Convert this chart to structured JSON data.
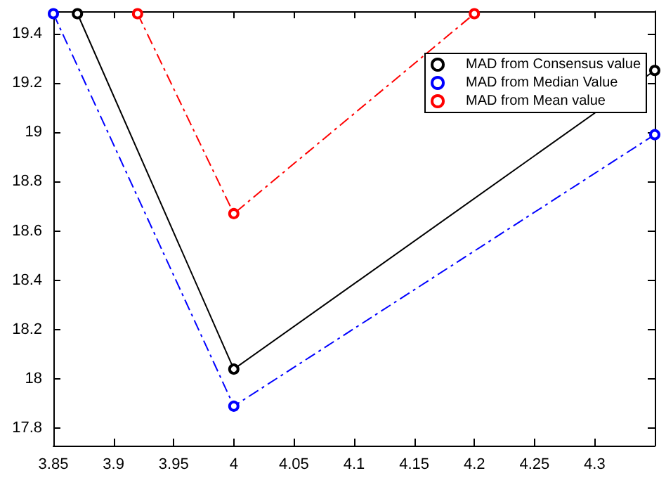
{
  "chart_data": {
    "type": "line",
    "marker": "circle",
    "legend": "top right",
    "grid": false,
    "xlim": [
      3.85,
      4.35
    ],
    "xticks": [
      3.85,
      3.9,
      3.95,
      4,
      4.05,
      4.1,
      4.15,
      4.2,
      4.25,
      4.3
    ],
    "ylim": [
      17.73,
      19.49
    ],
    "yticks": [
      17.8,
      18,
      18.2,
      18.4,
      18.6,
      18.8,
      19,
      19.2,
      19.4
    ],
    "series": [
      {
        "name": "MAD from Consensus value",
        "color": "#000000",
        "line_style": "solid",
        "x": [
          3.87,
          4,
          4.35
        ],
        "values": [
          19.48,
          18.04,
          19.25
        ]
      },
      {
        "name": "MAD from Median Value",
        "color": "#0000ff",
        "line_style": "dashed",
        "x": [
          3.85,
          4,
          4.35
        ],
        "values": [
          19.48,
          17.89,
          18.99
        ]
      },
      {
        "name": "MAD from Mean value",
        "color": "#ff0000",
        "line_style": "dashed",
        "x": [
          3.92,
          4,
          4.2
        ],
        "values": [
          19.48,
          18.67,
          19.48
        ]
      }
    ]
  }
}
